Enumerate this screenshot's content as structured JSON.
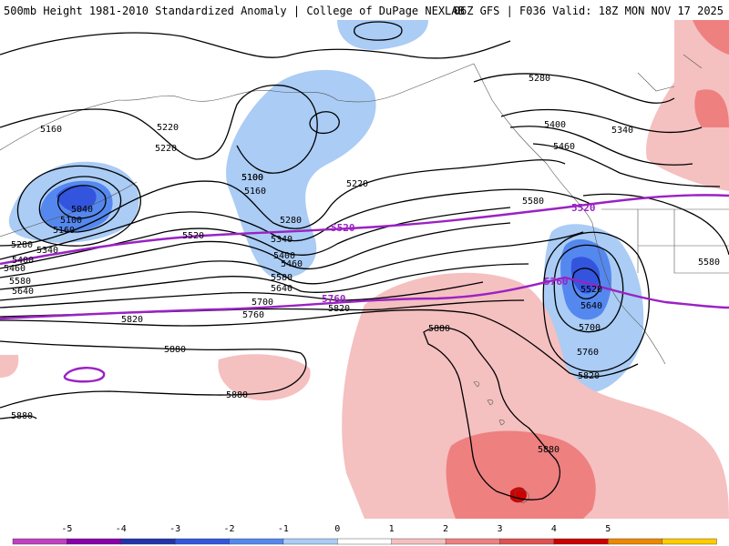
{
  "header": {
    "left_title": "500mb Height 1981-2010 Standardized Anomaly | College of DuPage NEXLAB",
    "right_title": "06Z GFS | F036 Valid: 18Z MON NOV 17 2025"
  },
  "colorbar": {
    "ticks": [
      "-5",
      "-4",
      "-3",
      "-2",
      "-1",
      "0",
      "1",
      "2",
      "3",
      "4",
      "5"
    ],
    "colors": [
      "#c040c0",
      "#8800aa",
      "#2233aa",
      "#3355dd",
      "#5588ee",
      "#aaccf5",
      "#ffffff",
      "#f5c0c0",
      "#ee8080",
      "#e05050",
      "#cc0000",
      "#ee8800",
      "#ffcc00"
    ]
  },
  "highlight_contours": [
    "5520",
    "5760"
  ],
  "height_labels": [
    "5160",
    "5220",
    "5220",
    "5100",
    "5040",
    "5100",
    "5160",
    "5280",
    "5340",
    "5400",
    "5460",
    "5580",
    "5640",
    "5100",
    "5160",
    "5220",
    "5280",
    "5340",
    "5400",
    "5460",
    "5520",
    "5580",
    "5640",
    "5700",
    "5760",
    "5820",
    "5820",
    "5880",
    "5880",
    "5880",
    "5280",
    "5400",
    "5340",
    "5460",
    "5580",
    "5580",
    "5520",
    "5640",
    "5700",
    "5760",
    "5820",
    "5880",
    "5880"
  ]
}
